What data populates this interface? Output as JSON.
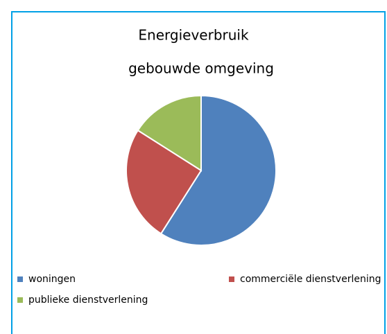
{
  "chart_data": {
    "type": "pie",
    "title": [
      "Energieverbruik",
      "gebouwde omgeving"
    ],
    "categories": [
      "woningen",
      "commerciële dienstverlening",
      "publieke dienstverlening"
    ],
    "values": [
      59,
      25,
      16
    ],
    "colors": [
      "#4f81bd",
      "#c0504d",
      "#9bbb59"
    ]
  }
}
